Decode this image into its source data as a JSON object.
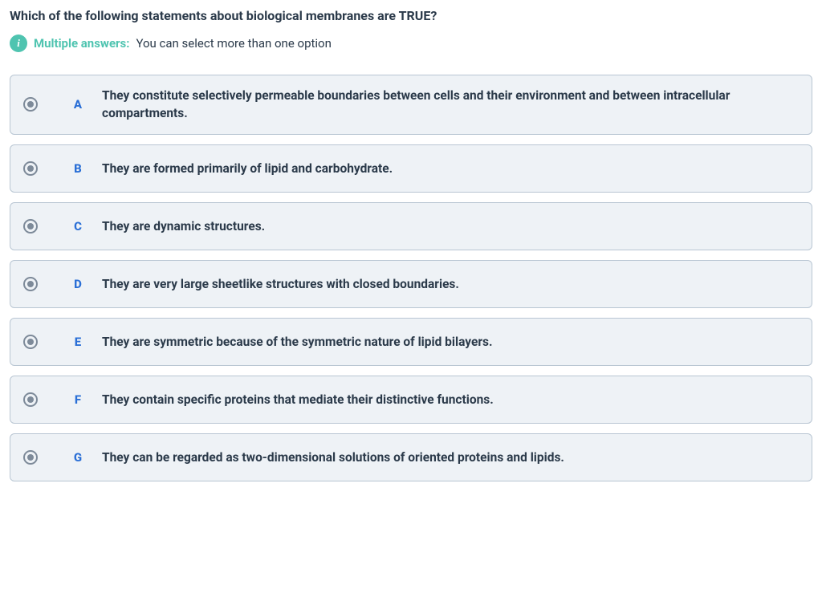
{
  "colors": {
    "question_text": "#2b3a4a",
    "accent_teal": "#4fc4b0",
    "hint_text": "#2b3a4a",
    "option_bg": "#eef2f6",
    "option_border": "#b9c6d3",
    "option_letter": "#2a6fd6",
    "option_text": "#2b3a4a",
    "radio_outer": "#7d8a99",
    "radio_inner": "#7d8a99"
  },
  "question": "Which of the following statements about biological membranes are TRUE?",
  "hint": {
    "label": "Multiple answers:",
    "text": "You can select more than one option"
  },
  "options": [
    {
      "letter": "A",
      "text": "They constitute selectively permeable boundaries between cells and their environment and between intracellular compartments."
    },
    {
      "letter": "B",
      "text": "They are formed primarily of lipid and carbohydrate."
    },
    {
      "letter": "C",
      "text": "They are dynamic structures."
    },
    {
      "letter": "D",
      "text": "They are very large sheetlike structures with closed boundaries."
    },
    {
      "letter": "E",
      "text": "They are symmetric because of the symmetric nature of lipid bilayers."
    },
    {
      "letter": "F",
      "text": "They contain specific proteins that mediate their distinctive functions."
    },
    {
      "letter": "G",
      "text": "They can be regarded as two-dimensional solutions of oriented proteins and lipids."
    }
  ]
}
